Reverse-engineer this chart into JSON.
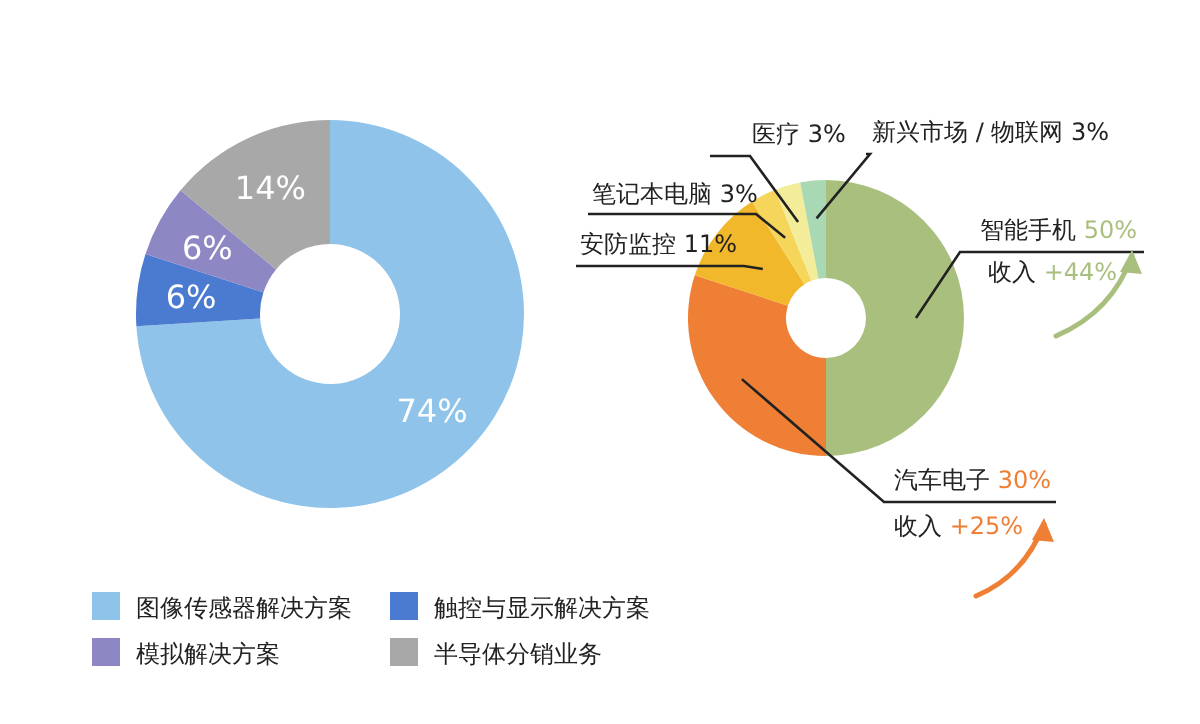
{
  "chart_data": [
    {
      "type": "donut",
      "categories": [
        "图像传感器解决方案",
        "触控与显示解决方案",
        "模拟解决方案",
        "半导体分销业务"
      ],
      "values": [
        74,
        6,
        6,
        14
      ],
      "colors": [
        "#8fc3ea",
        "#4a7bd0",
        "#8d87c4",
        "#a8a8a8"
      ],
      "value_labels": [
        "74%",
        "6%",
        "6%",
        "14%"
      ],
      "legend": "bottom"
    },
    {
      "type": "donut",
      "categories": [
        "智能手机",
        "汽车电子",
        "安防监控",
        "笔记本电脑",
        "医疗",
        "新兴市场 / 物联网"
      ],
      "values": [
        50,
        30,
        11,
        3,
        3,
        3
      ],
      "colors": [
        "#a9bf7e",
        "#ee7f35",
        "#f0b82a",
        "#f5d65a",
        "#f3ed9a",
        "#a8d8b4"
      ],
      "value_labels": [
        "50%",
        "30%",
        "11%",
        "3%",
        "3%",
        "3%"
      ],
      "annotations": [
        "收入 +44%",
        "收入 +25%"
      ]
    }
  ]
}
